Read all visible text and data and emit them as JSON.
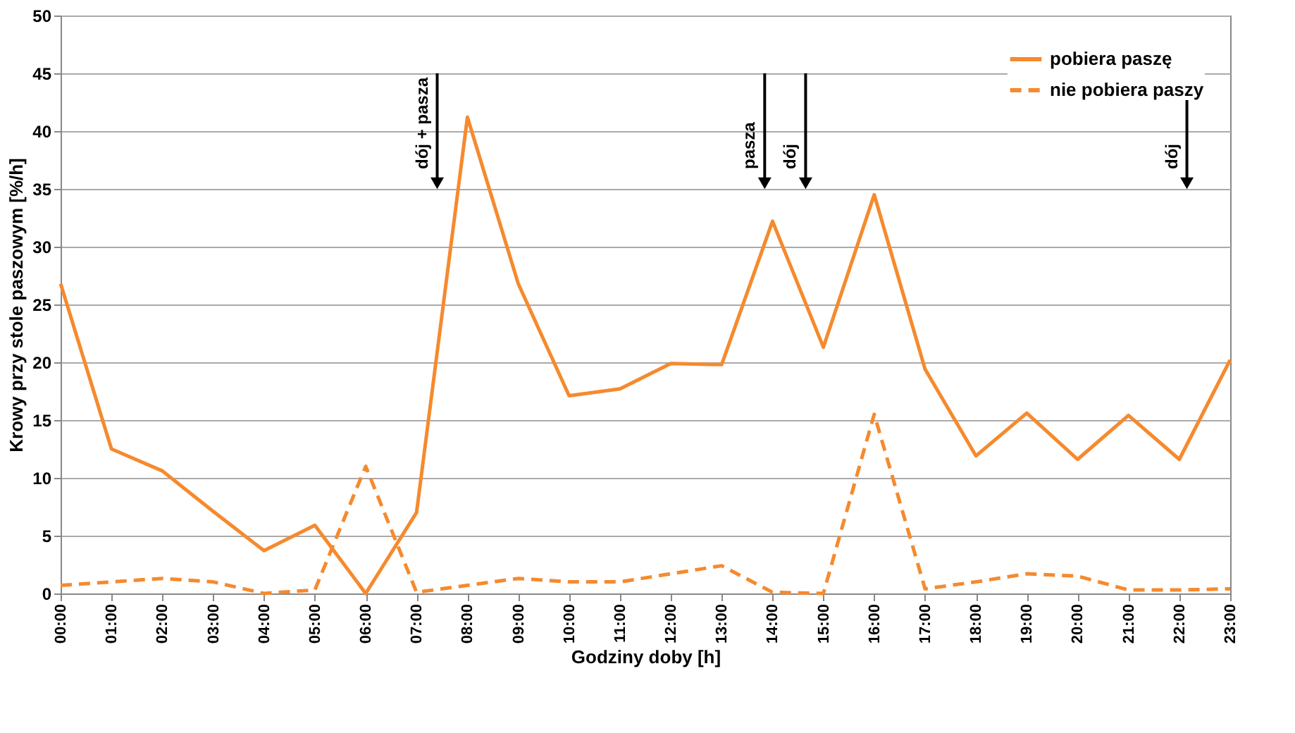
{
  "chart_data": {
    "type": "line",
    "xlabel": "Godziny doby [h]",
    "ylabel": "Krowy przy stole paszowym [%/h]",
    "x": [
      0,
      1,
      2,
      3,
      4,
      5,
      6,
      7,
      8,
      9,
      10,
      11,
      12,
      13,
      14,
      15,
      16,
      17,
      18,
      19,
      20,
      21,
      22,
      23
    ],
    "xlim": [
      0,
      23
    ],
    "xticks": [
      {
        "value": 0,
        "label": "00:00"
      },
      {
        "value": 1,
        "label": "01:00"
      },
      {
        "value": 2,
        "label": "02:00"
      },
      {
        "value": 3,
        "label": "03:00"
      },
      {
        "value": 4,
        "label": "04:00"
      },
      {
        "value": 5,
        "label": "05:00"
      },
      {
        "value": 6,
        "label": "06:00"
      },
      {
        "value": 7,
        "label": "07:00"
      },
      {
        "value": 8,
        "label": "08:00"
      },
      {
        "value": 9,
        "label": "09:00"
      },
      {
        "value": 10,
        "label": "10:00"
      },
      {
        "value": 11,
        "label": "11:00"
      },
      {
        "value": 12,
        "label": "12:00"
      },
      {
        "value": 13,
        "label": "13:00"
      },
      {
        "value": 14,
        "label": "14:00"
      },
      {
        "value": 15,
        "label": "15:00"
      },
      {
        "value": 16,
        "label": "16:00"
      },
      {
        "value": 17,
        "label": "17:00"
      },
      {
        "value": 18,
        "label": "18:00"
      },
      {
        "value": 19,
        "label": "19:00"
      },
      {
        "value": 20,
        "label": "20:00"
      },
      {
        "value": 21,
        "label": "21:00"
      },
      {
        "value": 22,
        "label": "22:00"
      },
      {
        "value": 23,
        "label": "23:00"
      }
    ],
    "ylim": [
      0,
      50
    ],
    "yticks": [
      0,
      5,
      10,
      15,
      20,
      25,
      30,
      35,
      40,
      45,
      50
    ],
    "grid": "y",
    "legend": "top right",
    "marker": "none",
    "series": [
      {
        "name": "pobiera paszę",
        "color": "#f58a2e",
        "line_style": "solid",
        "values": [
          26.8,
          12.5,
          10.6,
          7.1,
          3.7,
          5.9,
          0,
          7,
          41.2,
          26.8,
          17.1,
          17.7,
          19.9,
          19.8,
          32.2,
          21.3,
          34.5,
          19.4,
          11.9,
          15.6,
          11.6,
          15.4,
          11.6,
          20.2
        ]
      },
      {
        "name": "nie pobiera paszy",
        "color": "#f58a2e",
        "line_style": "dashed",
        "values": [
          0.7,
          1.0,
          1.3,
          1.0,
          0.0,
          0.3,
          11.0,
          0.1,
          0.7,
          1.3,
          1.0,
          1.0,
          1.7,
          2.4,
          0.1,
          0.0,
          15.5,
          0.4,
          1.0,
          1.7,
          1.5,
          0.3,
          0.3,
          0.4
        ]
      }
    ],
    "annotations": [
      "dój + pasza",
      "pasza",
      "dój",
      "dój"
    ]
  }
}
